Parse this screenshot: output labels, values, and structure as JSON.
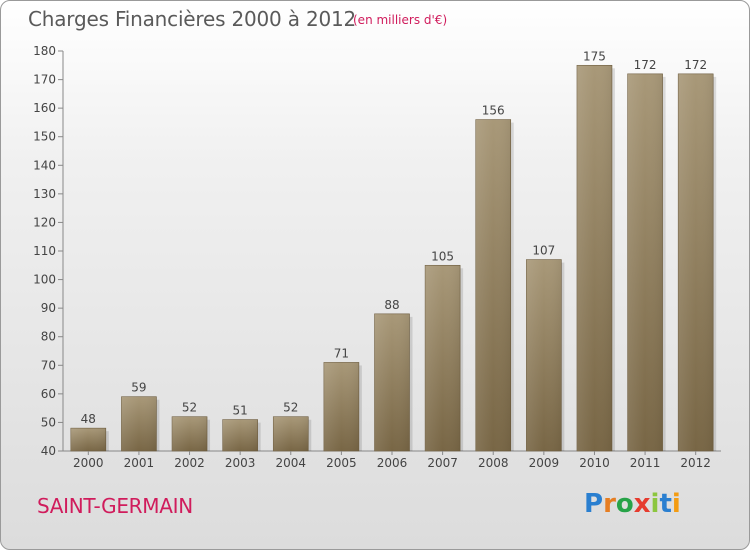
{
  "header": {
    "title": "Charges Financières 2000 à 2012",
    "unit": "(en milliers d'€)"
  },
  "footer": {
    "commune": "SAINT-GERMAIN",
    "logo_text": "Proxiti"
  },
  "colors": {
    "bar_top": "#a89878",
    "bar_bottom": "#786645",
    "axis": "#888888",
    "accent": "#d01c5c"
  },
  "chart_data": {
    "type": "bar",
    "title": "Charges Financières 2000 à 2012",
    "subtitle": "(en milliers d'€)",
    "xlabel": "",
    "ylabel": "",
    "categories": [
      "2000",
      "2001",
      "2002",
      "2003",
      "2004",
      "2005",
      "2006",
      "2007",
      "2008",
      "2009",
      "2010",
      "2011",
      "2012"
    ],
    "values": [
      48,
      59,
      52,
      51,
      52,
      71,
      88,
      105,
      156,
      107,
      175,
      172,
      172
    ],
    "ylim": [
      40,
      180
    ],
    "yticks": [
      40,
      50,
      60,
      70,
      80,
      90,
      100,
      110,
      120,
      130,
      140,
      150,
      160,
      170,
      180
    ],
    "grid": false,
    "legend": "none",
    "data_labels": true
  }
}
